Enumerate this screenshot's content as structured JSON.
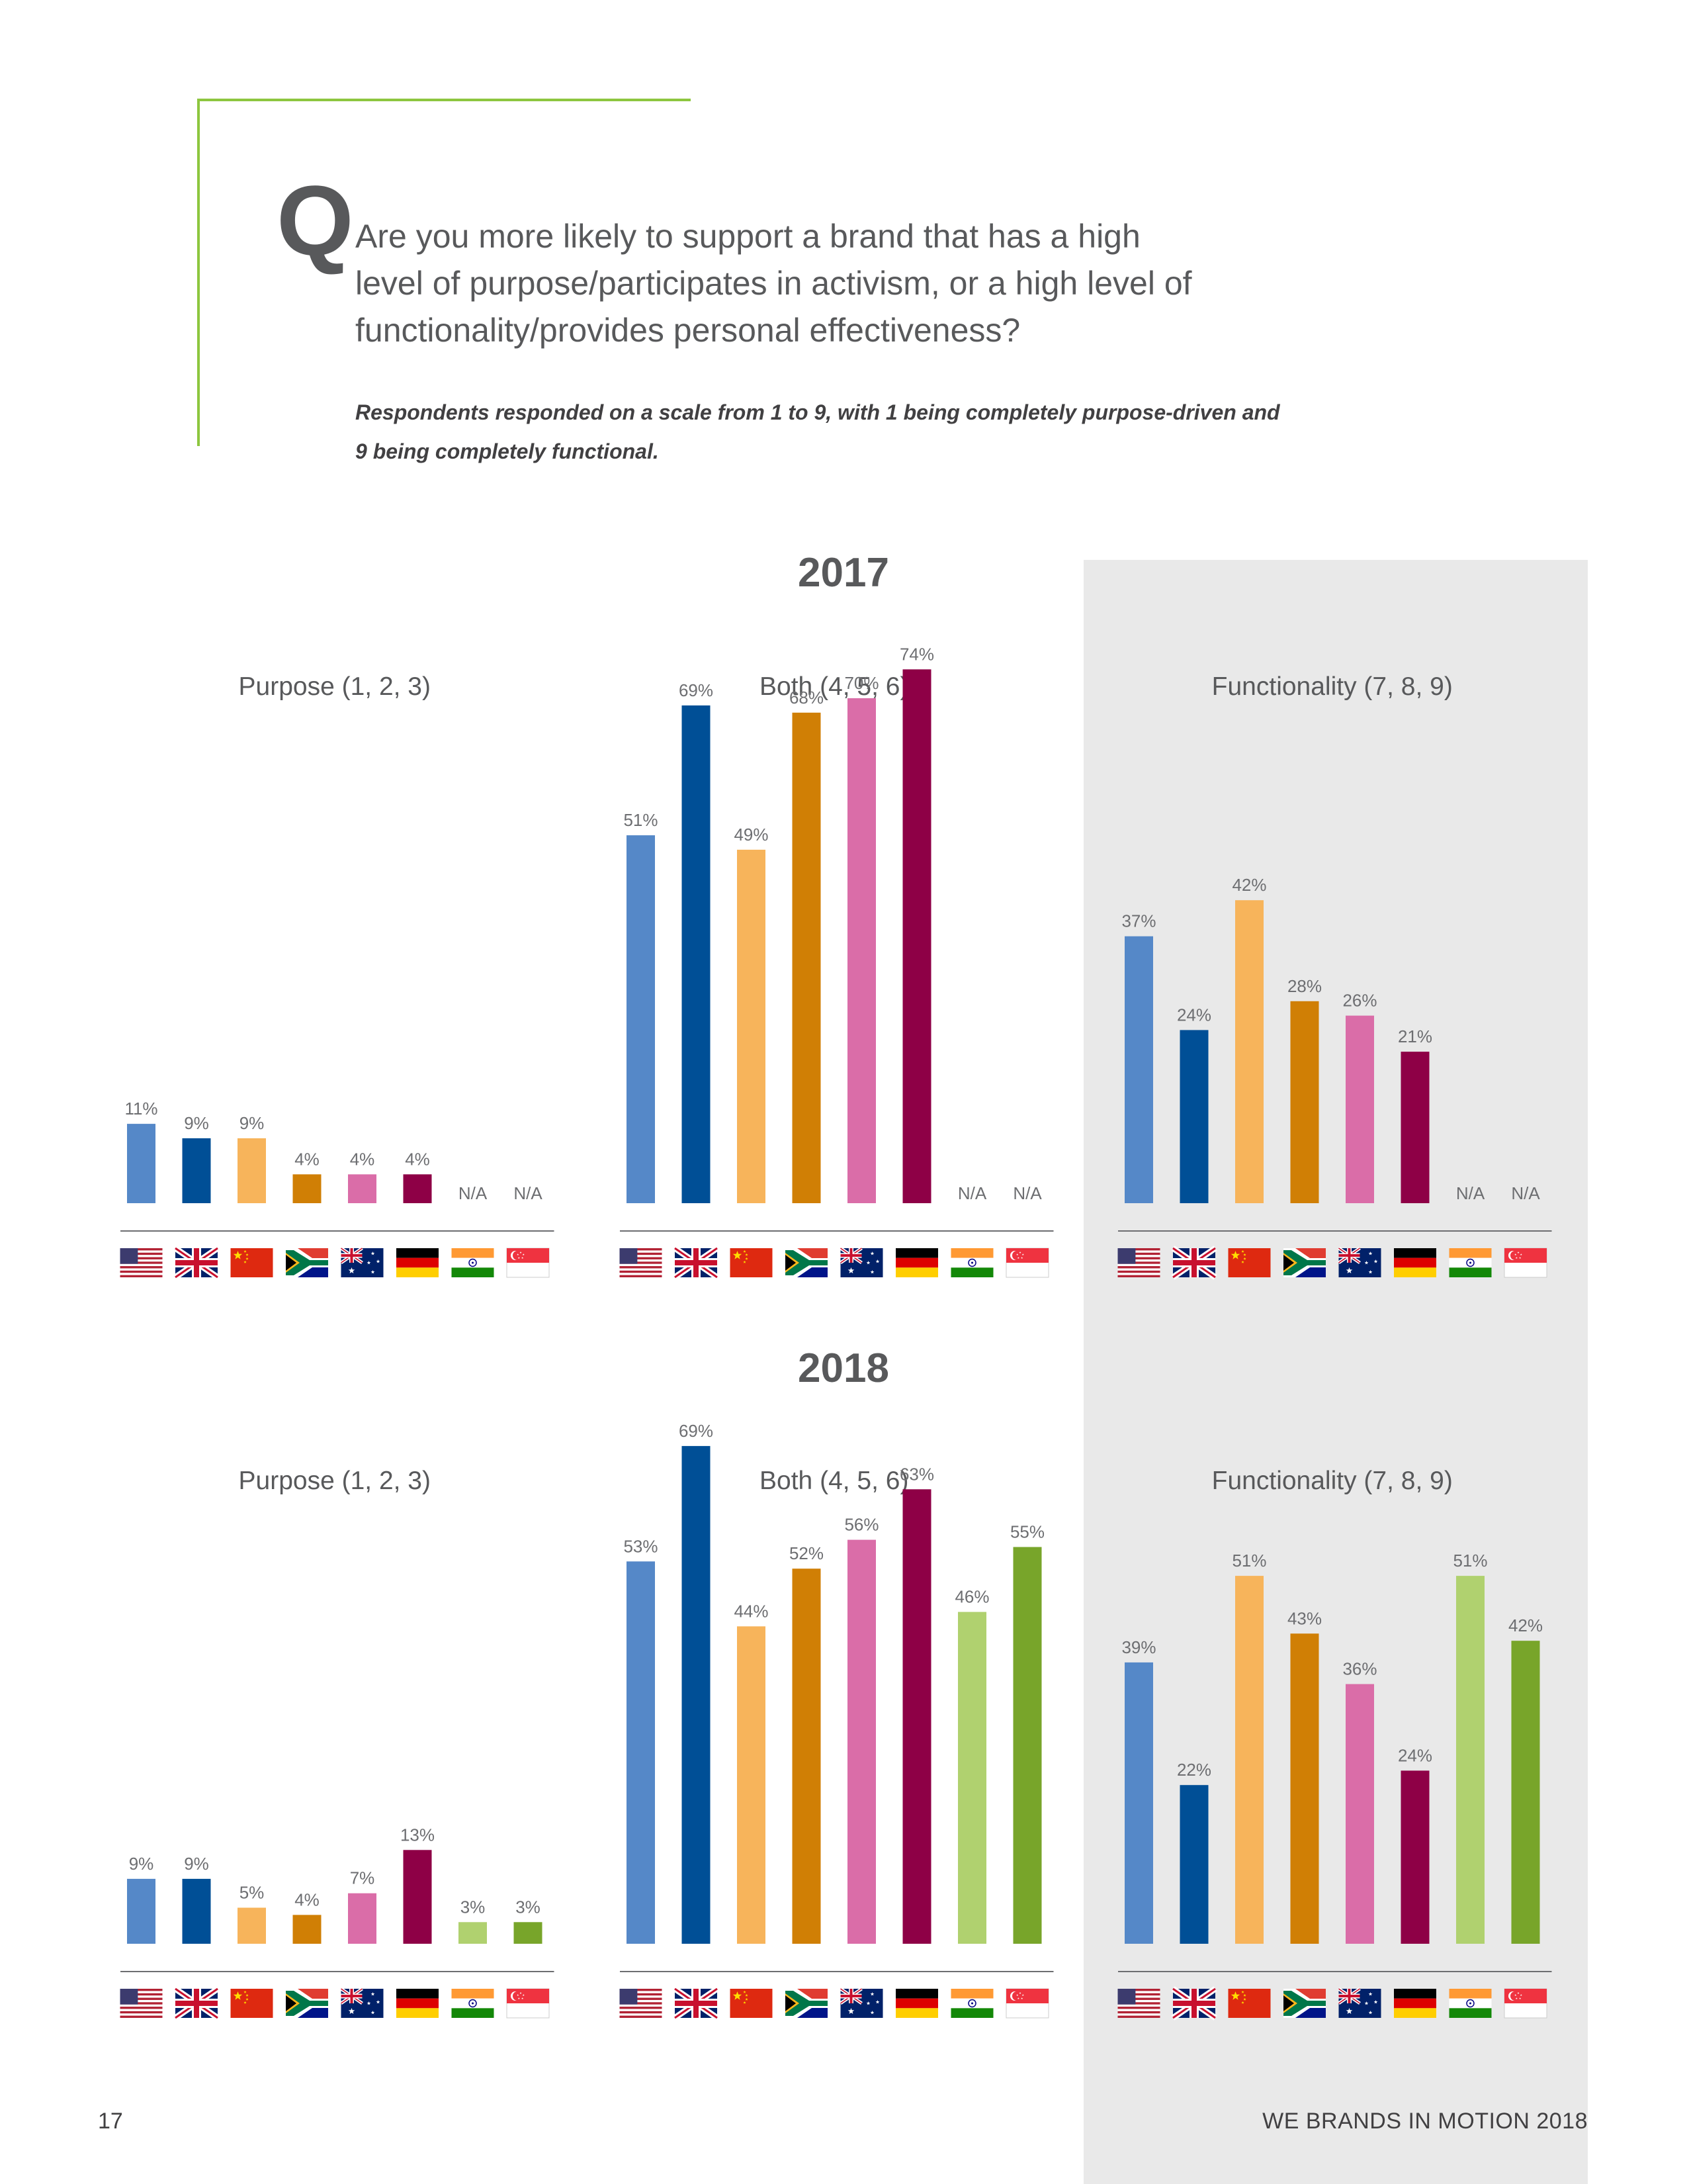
{
  "question": {
    "letter": "Q",
    "text": "Are you more likely to support a brand that has a high level of purpose/participates in activism, or a high level of functionality/provides personal effectiveness?",
    "note": "Respondents responded on a scale from 1 to 9, with 1 being completely purpose-driven and 9 being completely functional."
  },
  "footer": {
    "page_number": "17",
    "brand": "WE BRANDS IN MOTION 2018"
  },
  "countries": [
    "United States",
    "United Kingdom",
    "China",
    "South Africa",
    "Australia",
    "Germany",
    "India",
    "Singapore"
  ],
  "colors": {
    "accent_green": "#8dc63f",
    "panel_gray": "#e9e9e9",
    "series": [
      "#5588c8",
      "#004f96",
      "#f7b45b",
      "#d07f05",
      "#da6da8",
      "#8e0046",
      "#b0d16f",
      "#78a52a"
    ]
  },
  "chart_data": [
    {
      "type": "bar",
      "year": "2017",
      "title": "Purpose (1, 2, 3)",
      "categories": [
        "United States",
        "United Kingdom",
        "China",
        "South Africa",
        "Australia",
        "Germany",
        "India",
        "Singapore"
      ],
      "values": [
        11,
        9,
        9,
        4,
        4,
        4,
        null,
        null
      ],
      "labels": [
        "11%",
        "9%",
        "9%",
        "4%",
        "4%",
        "4%",
        "N/A",
        "N/A"
      ],
      "ylim": [
        0,
        100
      ]
    },
    {
      "type": "bar",
      "year": "2017",
      "title": "Both (4, 5, 6)",
      "categories": [
        "United States",
        "United Kingdom",
        "China",
        "South Africa",
        "Australia",
        "Germany",
        "India",
        "Singapore"
      ],
      "values": [
        51,
        69,
        49,
        68,
        70,
        74,
        null,
        null
      ],
      "labels": [
        "51%",
        "69%",
        "49%",
        "68%",
        "70%",
        "74%",
        "N/A",
        "N/A"
      ],
      "ylim": [
        0,
        100
      ]
    },
    {
      "type": "bar",
      "year": "2017",
      "title": "Functionality (7, 8, 9)",
      "categories": [
        "United States",
        "United Kingdom",
        "China",
        "South Africa",
        "Australia",
        "Germany",
        "India",
        "Singapore"
      ],
      "values": [
        37,
        24,
        42,
        28,
        26,
        21,
        null,
        null
      ],
      "labels": [
        "37%",
        "24%",
        "42%",
        "28%",
        "26%",
        "21%",
        "N/A",
        "N/A"
      ],
      "ylim": [
        0,
        100
      ]
    },
    {
      "type": "bar",
      "year": "2018",
      "title": "Purpose (1, 2, 3)",
      "categories": [
        "United States",
        "United Kingdom",
        "China",
        "South Africa",
        "Australia",
        "Germany",
        "India",
        "Singapore"
      ],
      "values": [
        9,
        9,
        5,
        4,
        7,
        13,
        3,
        3
      ],
      "labels": [
        "9%",
        "9%",
        "5%",
        "4%",
        "7%",
        "13%",
        "3%",
        "3%"
      ],
      "ylim": [
        0,
        100
      ]
    },
    {
      "type": "bar",
      "year": "2018",
      "title": "Both (4, 5, 6)",
      "categories": [
        "United States",
        "United Kingdom",
        "China",
        "South Africa",
        "Australia",
        "Germany",
        "India",
        "Singapore"
      ],
      "values": [
        53,
        69,
        44,
        52,
        56,
        63,
        46,
        55
      ],
      "labels": [
        "53%",
        "69%",
        "44%",
        "52%",
        "56%",
        "63%",
        "46%",
        "55%"
      ],
      "ylim": [
        0,
        100
      ]
    },
    {
      "type": "bar",
      "year": "2018",
      "title": "Functionality (7, 8, 9)",
      "categories": [
        "United States",
        "United Kingdom",
        "China",
        "South Africa",
        "Australia",
        "Germany",
        "India",
        "Singapore"
      ],
      "values": [
        39,
        22,
        51,
        43,
        36,
        24,
        51,
        42
      ],
      "labels": [
        "39%",
        "22%",
        "51%",
        "43%",
        "36%",
        "24%",
        "51%",
        "42%"
      ],
      "ylim": [
        0,
        100
      ]
    }
  ]
}
